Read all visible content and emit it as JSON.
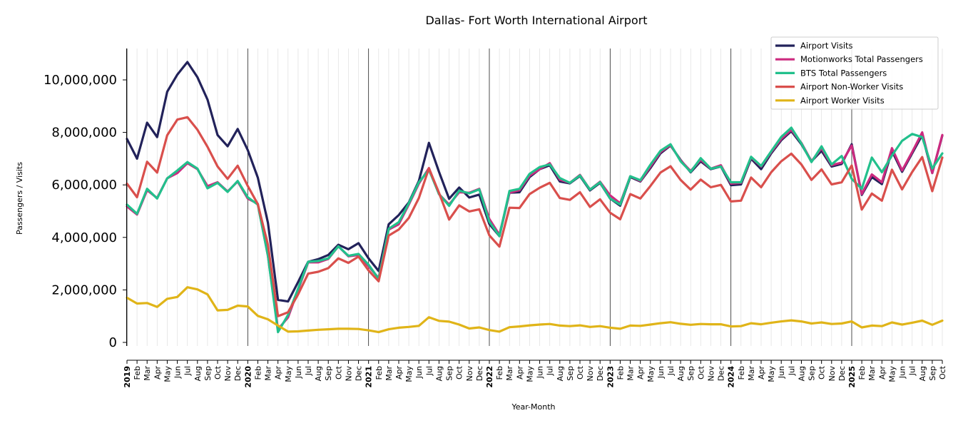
{
  "chart_data": {
    "type": "line",
    "title": "Dallas- Fort Worth International Airport",
    "xlabel": "Year-Month",
    "ylabel": "Passengers / Visits",
    "ylim": [
      -300000,
      11200000
    ],
    "yticks": [
      0,
      2000000,
      4000000,
      6000000,
      8000000,
      10000000
    ],
    "ytick_labels": [
      "0",
      "2,000,000",
      "4,000,000",
      "6,000,000",
      "8,000,000",
      "10,000,000"
    ],
    "legend_position": "top-right",
    "grid": "vertical monthly gridlines; darker lines at January of each year",
    "x": [
      "2019-01",
      "2019-02",
      "2019-03",
      "2019-04",
      "2019-05",
      "2019-06",
      "2019-07",
      "2019-08",
      "2019-09",
      "2019-10",
      "2019-11",
      "2019-12",
      "2020-01",
      "2020-02",
      "2020-03",
      "2020-04",
      "2020-05",
      "2020-06",
      "2020-07",
      "2020-08",
      "2020-09",
      "2020-10",
      "2020-11",
      "2020-12",
      "2021-01",
      "2021-02",
      "2021-03",
      "2021-04",
      "2021-05",
      "2021-06",
      "2021-07",
      "2021-08",
      "2021-09",
      "2021-10",
      "2021-11",
      "2021-12",
      "2022-01",
      "2022-02",
      "2022-03",
      "2022-04",
      "2022-05",
      "2022-06",
      "2022-07",
      "2022-08",
      "2022-09",
      "2022-10",
      "2022-11",
      "2022-12",
      "2023-01",
      "2023-02",
      "2023-03",
      "2023-04",
      "2023-05",
      "2023-06",
      "2023-07",
      "2023-08",
      "2023-09",
      "2023-10",
      "2023-11",
      "2023-12",
      "2024-01",
      "2024-02",
      "2024-03",
      "2024-04",
      "2024-05",
      "2024-06",
      "2024-07",
      "2024-08",
      "2024-09",
      "2024-10",
      "2024-11",
      "2024-12",
      "2025-01",
      "2025-02",
      "2025-03",
      "2025-04",
      "2025-05",
      "2025-06",
      "2025-07",
      "2025-08",
      "2025-09",
      "2025-10"
    ],
    "xtick_labels": [
      "2019",
      "Feb",
      "Mar",
      "Apr",
      "May",
      "Jun",
      "Jul",
      "Aug",
      "Sep",
      "Oct",
      "Nov",
      "Dec",
      "2020",
      "Feb",
      "Mar",
      "Apr",
      "May",
      "Jun",
      "Jul",
      "Aug",
      "Sep",
      "Oct",
      "Nov",
      "Dec",
      "2021",
      "Feb",
      "Mar",
      "Apr",
      "May",
      "Jun",
      "Jul",
      "Aug",
      "Sep",
      "Oct",
      "Nov",
      "Dec",
      "2022",
      "Feb",
      "Mar",
      "Apr",
      "May",
      "Jun",
      "Jul",
      "Aug",
      "Sep",
      "Oct",
      "Nov",
      "Dec",
      "2023",
      "Feb",
      "Mar",
      "Apr",
      "May",
      "Jun",
      "Jul",
      "Aug",
      "Sep",
      "Oct",
      "Nov",
      "Dec",
      "2024",
      "Feb",
      "Mar",
      "Apr",
      "May",
      "Jun",
      "Jul",
      "Aug",
      "Sep",
      "Oct",
      "Nov",
      "Dec",
      "2025",
      "Feb",
      "Mar",
      "Apr",
      "May",
      "Jun",
      "Jul",
      "Aug",
      "Sep",
      "Oct"
    ],
    "series": [
      {
        "name": "Airport Visits",
        "color": "#22225a",
        "values": [
          7750000,
          7000000,
          8370000,
          7820000,
          9550000,
          10200000,
          10680000,
          10100000,
          9250000,
          7900000,
          7470000,
          8130000,
          7330000,
          6280000,
          4560000,
          1620000,
          1560000,
          2300000,
          3070000,
          3170000,
          3330000,
          3720000,
          3550000,
          3780000,
          3200000,
          2720000,
          4500000,
          4850000,
          5330000,
          6150000,
          7600000,
          6500000,
          5470000,
          5900000,
          5520000,
          5630000,
          4510000,
          4050000,
          5700000,
          5720000,
          6300000,
          6600000,
          6750000,
          6130000,
          6060000,
          6340000,
          5790000,
          6080000,
          5480000,
          5210000,
          6300000,
          6130000,
          6640000,
          7200000,
          7500000,
          6950000,
          6480000,
          6900000,
          6600000,
          6700000,
          5990000,
          6020000,
          7000000,
          6600000,
          7200000,
          7700000,
          8050000,
          7550000,
          6900000,
          7300000,
          6700000,
          6800000,
          7550000,
          5620000,
          6300000,
          6030000,
          7300000,
          6500000,
          7200000,
          7900000,
          6450000,
          7880000
        ]
      },
      {
        "name": "Motionworks Total Passengers",
        "color": "#cc2a7f",
        "values": [
          5180000,
          4870000,
          5800000,
          5500000,
          6250000,
          6450000,
          6830000,
          6600000,
          5950000,
          6100000,
          5750000,
          6130000,
          5480000,
          5280000,
          3300000,
          500000,
          950000,
          2000000,
          3050000,
          3050000,
          3180000,
          3660000,
          3280000,
          3330000,
          2900000,
          2450000,
          4300000,
          4500000,
          5250000,
          6050000,
          6640000,
          5650000,
          5250000,
          5720000,
          5700000,
          5850000,
          4700000,
          4100000,
          5700000,
          5800000,
          6350000,
          6600000,
          6830000,
          6200000,
          6080000,
          6380000,
          5820000,
          6120000,
          5600000,
          5300000,
          6330000,
          6150000,
          6700000,
          7250000,
          7520000,
          6930000,
          6530000,
          6960000,
          6620000,
          6750000,
          6050000,
          6080000,
          7050000,
          6700000,
          7250000,
          7750000,
          8100000,
          7600000,
          6900000,
          7400000,
          6750000,
          6850000,
          7500000,
          5650000,
          6400000,
          6100000,
          7400000,
          6550000,
          7250000,
          8000000,
          6450000,
          7900000
        ]
      },
      {
        "name": "BTS Total Passengers",
        "color": "#22c08c",
        "values": [
          5250000,
          4900000,
          5850000,
          5480000,
          6250000,
          6550000,
          6870000,
          6620000,
          5870000,
          6080000,
          5730000,
          6150000,
          5530000,
          5250000,
          3300000,
          390000,
          1050000,
          2050000,
          3070000,
          3100000,
          3200000,
          3660000,
          3300000,
          3370000,
          2960000,
          2420000,
          4330000,
          4580000,
          5300000,
          6100000,
          6580000,
          5650000,
          5200000,
          5780000,
          5680000,
          5830000,
          4600000,
          4050000,
          5770000,
          5850000,
          6420000,
          6680000,
          6780000,
          6260000,
          6080000,
          6360000,
          5820000,
          6100000,
          5480000,
          5250000,
          6330000,
          6180000,
          6770000,
          7300000,
          7550000,
          6900000,
          6500000,
          7020000,
          6620000,
          6700000,
          6100000,
          6100000,
          7070000,
          6720000,
          7280000,
          7830000,
          8180000,
          7580000,
          6870000,
          7470000,
          6780000,
          7100000,
          6230000,
          5850000,
          7040000,
          6480000,
          7120000,
          7680000,
          7940000,
          7820000,
          6620000,
          7200000
        ]
      },
      {
        "name": "Airport Non-Worker Visits",
        "color": "#d94f4c",
        "values": [
          6050000,
          5530000,
          6880000,
          6470000,
          7890000,
          8490000,
          8580000,
          8100000,
          7450000,
          6700000,
          6230000,
          6730000,
          5960000,
          5270000,
          3720000,
          1000000,
          1150000,
          1830000,
          2620000,
          2690000,
          2830000,
          3200000,
          3030000,
          3270000,
          2740000,
          2330000,
          4070000,
          4300000,
          4740000,
          5500000,
          6630000,
          5700000,
          4680000,
          5220000,
          4990000,
          5070000,
          4080000,
          3650000,
          5130000,
          5120000,
          5650000,
          5890000,
          6080000,
          5500000,
          5430000,
          5720000,
          5160000,
          5450000,
          4940000,
          4690000,
          5650000,
          5480000,
          5960000,
          6470000,
          6710000,
          6190000,
          5820000,
          6200000,
          5910000,
          6000000,
          5370000,
          5400000,
          6280000,
          5910000,
          6480000,
          6900000,
          7190000,
          6780000,
          6190000,
          6590000,
          6020000,
          6100000,
          6740000,
          5060000,
          5670000,
          5400000,
          6580000,
          5830000,
          6490000,
          7060000,
          5760000,
          7040000
        ]
      },
      {
        "name": "Airport Worker Visits",
        "color": "#e0b418",
        "values": [
          1700000,
          1480000,
          1500000,
          1350000,
          1660000,
          1730000,
          2100000,
          2020000,
          1830000,
          1220000,
          1240000,
          1400000,
          1370000,
          1010000,
          880000,
          640000,
          410000,
          420000,
          450000,
          480000,
          500000,
          520000,
          520000,
          510000,
          460000,
          390000,
          500000,
          560000,
          590000,
          630000,
          960000,
          820000,
          790000,
          680000,
          530000,
          570000,
          470000,
          410000,
          580000,
          610000,
          650000,
          680000,
          700000,
          640000,
          620000,
          650000,
          590000,
          620000,
          560000,
          520000,
          640000,
          630000,
          680000,
          730000,
          770000,
          710000,
          670000,
          700000,
          690000,
          690000,
          610000,
          620000,
          730000,
          690000,
          750000,
          800000,
          840000,
          800000,
          720000,
          760000,
          700000,
          720000,
          800000,
          570000,
          640000,
          620000,
          760000,
          680000,
          750000,
          830000,
          670000,
          830000
        ]
      }
    ]
  }
}
